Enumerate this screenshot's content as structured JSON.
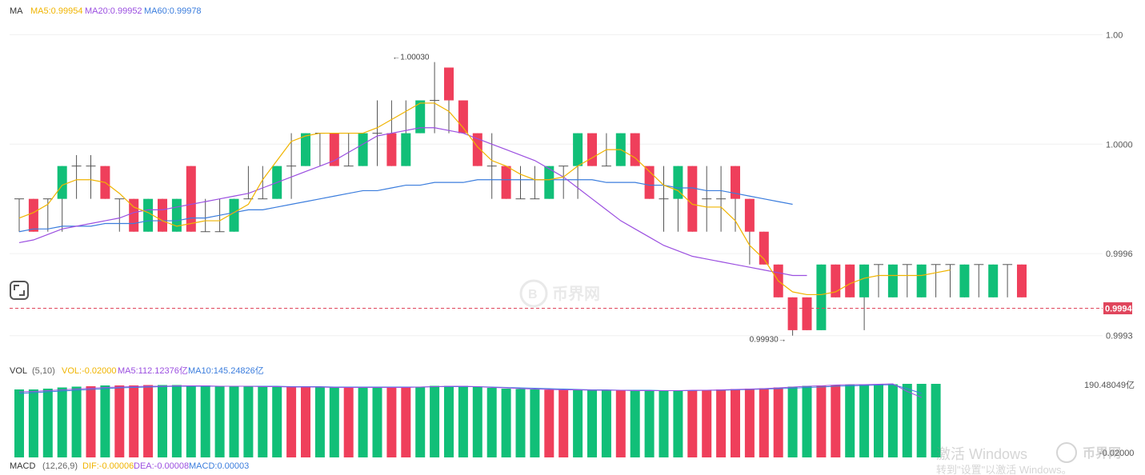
{
  "colors": {
    "up": "#11bf78",
    "down": "#ef3f5b",
    "ma5": "#f0b400",
    "ma20": "#9b4fe0",
    "ma60": "#3b7ddd",
    "grid": "#f0f0f0",
    "axis_text": "#555555",
    "price_line": "#e0455c",
    "label_bg": "#e0455c"
  },
  "main_header": {
    "label": "MA",
    "ma5": "MA5:0.99954",
    "ma20": "MA20:0.99952",
    "ma60": "MA60:0.99978"
  },
  "vol_header": {
    "label": "VOL",
    "params": "(5,10)",
    "vol": "VOL:-0.02000",
    "ma5": "MA5:112.12376亿",
    "ma10": "MA10:145.24826亿"
  },
  "macd_header": {
    "label": "MACD",
    "params": "(12,26,9)",
    "dif": "DIF:-0.00006",
    "dea": "DEA:-0.00008",
    "macd": "MACD:0.00003"
  },
  "watermark": {
    "text": "币界网",
    "activate_line1": "激活 Windows",
    "activate_line2": "转到\"设置\"以激活 Windows。"
  },
  "chart_data": [
    {
      "type": "candlestick",
      "name": "price",
      "y_ticks": [
        "1.00",
        "1.0000",
        "0.9996",
        "0.9993"
      ],
      "y_tick_values": [
        1.0004,
        1.0,
        0.9996,
        0.9993
      ],
      "ylim": [
        0.99927,
        1.00041
      ],
      "last_price_label": "0.9994",
      "last_price": 0.9994,
      "annotations": [
        {
          "text": "←1.00030",
          "index": 27,
          "value": 1.0003
        },
        {
          "text": "0.99930→",
          "index": 54,
          "value": 0.9993
        }
      ],
      "candles": [
        [
          0.9998,
          0.9998,
          0.9998,
          0.99968
        ],
        [
          0.9998,
          0.99968,
          0.9998,
          0.99968
        ],
        [
          0.9998,
          0.9998,
          0.9998,
          0.99968
        ],
        [
          0.9998,
          0.99992,
          0.99992,
          0.99968
        ],
        [
          0.99992,
          0.99992,
          0.99996,
          0.9998
        ],
        [
          0.99992,
          0.99992,
          0.99996,
          0.9998
        ],
        [
          0.99992,
          0.9998,
          0.99992,
          0.9998
        ],
        [
          0.9998,
          0.9998,
          0.9998,
          0.99968
        ],
        [
          0.9998,
          0.99968,
          0.9998,
          0.99968
        ],
        [
          0.99968,
          0.9998,
          0.9998,
          0.99968
        ],
        [
          0.9998,
          0.99968,
          0.9998,
          0.99968
        ],
        [
          0.99968,
          0.9998,
          0.9998,
          0.99968
        ],
        [
          0.99992,
          0.99968,
          0.99992,
          0.99968
        ],
        [
          0.99968,
          0.99968,
          0.9998,
          0.99968
        ],
        [
          0.99968,
          0.99968,
          0.9998,
          0.99968
        ],
        [
          0.99968,
          0.9998,
          0.9998,
          0.99968
        ],
        [
          0.9998,
          0.9998,
          0.99992,
          0.9998
        ],
        [
          0.9998,
          0.9998,
          0.99992,
          0.9998
        ],
        [
          0.9998,
          0.99992,
          0.99992,
          0.9998
        ],
        [
          0.99992,
          0.99992,
          1.00004,
          0.9998
        ],
        [
          0.99992,
          1.00004,
          1.00004,
          0.99992
        ],
        [
          1.00004,
          1.00004,
          1.00004,
          0.99992
        ],
        [
          1.00004,
          0.99992,
          1.00004,
          0.99992
        ],
        [
          0.99992,
          0.99992,
          1.00004,
          0.99992
        ],
        [
          0.99992,
          1.00004,
          1.00004,
          0.99992
        ],
        [
          1.00004,
          1.00004,
          1.00016,
          0.99992
        ],
        [
          1.00004,
          0.99992,
          1.00016,
          0.99992
        ],
        [
          0.99992,
          1.00004,
          1.00016,
          0.99992
        ],
        [
          1.00004,
          1.00016,
          1.00016,
          1.00004
        ],
        [
          1.00016,
          1.00016,
          1.0003,
          1.00004
        ],
        [
          1.00028,
          1.00016,
          1.00028,
          1.00004
        ],
        [
          1.00016,
          1.00004,
          1.00016,
          1.00004
        ],
        [
          1.00004,
          0.99992,
          1.00004,
          0.99992
        ],
        [
          0.99992,
          0.99992,
          1.00004,
          0.9998
        ],
        [
          0.99992,
          0.9998,
          0.99992,
          0.9998
        ],
        [
          0.9998,
          0.9998,
          0.99992,
          0.9998
        ],
        [
          0.9998,
          0.9998,
          0.99992,
          0.9998
        ],
        [
          0.9998,
          0.99992,
          0.99992,
          0.9998
        ],
        [
          0.99992,
          0.99992,
          0.99992,
          0.9998
        ],
        [
          0.99992,
          1.00004,
          1.00004,
          0.9998
        ],
        [
          1.00004,
          0.99992,
          1.00004,
          0.99992
        ],
        [
          0.99992,
          0.99992,
          1.00004,
          0.99992
        ],
        [
          0.99992,
          1.00004,
          1.00004,
          0.99992
        ],
        [
          1.00004,
          0.99992,
          1.00004,
          0.99992
        ],
        [
          0.99992,
          0.9998,
          0.99992,
          0.9998
        ],
        [
          0.9998,
          0.9998,
          0.99992,
          0.99968
        ],
        [
          0.9998,
          0.99992,
          0.99992,
          0.99968
        ],
        [
          0.99992,
          0.99968,
          0.99992,
          0.99968
        ],
        [
          0.9998,
          0.9998,
          0.99992,
          0.99968
        ],
        [
          0.9998,
          0.9998,
          0.99992,
          0.99968
        ],
        [
          0.99992,
          0.9998,
          0.99992,
          0.99968
        ],
        [
          0.9998,
          0.99968,
          0.9998,
          0.99956
        ],
        [
          0.99968,
          0.99956,
          0.99968,
          0.99956
        ],
        [
          0.99956,
          0.99944,
          0.99956,
          0.99944
        ],
        [
          0.99944,
          0.99932,
          0.99944,
          0.9993
        ],
        [
          0.99944,
          0.99932,
          0.99944,
          0.99932
        ],
        [
          0.99932,
          0.99956,
          0.99956,
          0.99932
        ],
        [
          0.99956,
          0.99944,
          0.99956,
          0.99944
        ],
        [
          0.99956,
          0.99944,
          0.99956,
          0.99944
        ],
        [
          0.99944,
          0.99956,
          0.99956,
          0.99932
        ],
        [
          0.99956,
          0.99956,
          0.99956,
          0.99944
        ],
        [
          0.99944,
          0.99956,
          0.99956,
          0.99944
        ],
        [
          0.99956,
          0.99956,
          0.99956,
          0.99944
        ],
        [
          0.99944,
          0.99956,
          0.99956,
          0.99944
        ],
        [
          0.99956,
          0.99956,
          0.99956,
          0.99944
        ],
        [
          0.99956,
          0.99956,
          0.99956,
          0.99944
        ],
        [
          0.99944,
          0.99956,
          0.99956,
          0.99944
        ],
        [
          0.99956,
          0.99956,
          0.99956,
          0.99944
        ],
        [
          0.99944,
          0.99956,
          0.99956,
          0.99944
        ],
        [
          0.99956,
          0.99956,
          0.99956,
          0.99944
        ],
        [
          0.99956,
          0.99944,
          0.99956,
          0.99944
        ]
      ],
      "ma5": [
        0.99973,
        0.99975,
        0.99978,
        0.99985,
        0.99987,
        0.99987,
        0.99986,
        0.99982,
        0.99977,
        0.99975,
        0.99972,
        0.9997,
        0.99971,
        0.99972,
        0.99972,
        0.99975,
        0.99978,
        0.99987,
        0.99994,
        1.00001,
        1.00003,
        1.00004,
        1.00004,
        1.00004,
        1.00004,
        1.00006,
        1.00009,
        1.00012,
        1.00015,
        1.00015,
        1.00012,
        1.00006,
        0.99999,
        0.99994,
        0.99992,
        0.99989,
        0.99987,
        0.99987,
        0.99988,
        0.99992,
        0.99995,
        0.99998,
        0.99998,
        0.99995,
        0.9999,
        0.99985,
        0.99983,
        0.99978,
        0.99977,
        0.99977,
        0.99972,
        0.99963,
        0.99958,
        0.9995,
        0.99946,
        0.99945,
        0.99945,
        0.99946,
        0.99949,
        0.99951,
        0.99952,
        0.99952,
        0.99952,
        0.99952,
        0.99953,
        0.99954
      ],
      "ma20": [
        0.99964,
        0.99965,
        0.99967,
        0.99969,
        0.9997,
        0.99971,
        0.99972,
        0.99973,
        0.99975,
        0.99976,
        0.99976,
        0.99977,
        0.99978,
        0.99979,
        0.9998,
        0.99981,
        0.99982,
        0.99984,
        0.99986,
        0.99988,
        0.9999,
        0.99992,
        0.99994,
        0.99997,
        1.0,
        1.00003,
        1.00004,
        1.00005,
        1.00006,
        1.00006,
        1.00005,
        1.00004,
        1.00002,
        1.0,
        0.99998,
        0.99996,
        0.99994,
        0.99991,
        0.99988,
        0.99984,
        0.9998,
        0.99976,
        0.99972,
        0.99969,
        0.99966,
        0.99963,
        0.99961,
        0.99959,
        0.99958,
        0.99957,
        0.99956,
        0.99955,
        0.99954,
        0.99953,
        0.99952,
        0.99952
      ],
      "ma60": [
        0.99968,
        0.99969,
        0.99969,
        0.9997,
        0.9997,
        0.9997,
        0.99971,
        0.99971,
        0.99971,
        0.99972,
        0.99972,
        0.99972,
        0.99973,
        0.99973,
        0.99974,
        0.99975,
        0.99976,
        0.99976,
        0.99977,
        0.99978,
        0.99979,
        0.9998,
        0.99981,
        0.99982,
        0.99983,
        0.99983,
        0.99984,
        0.99985,
        0.99985,
        0.99986,
        0.99986,
        0.99986,
        0.99987,
        0.99987,
        0.99987,
        0.99987,
        0.99987,
        0.99987,
        0.99987,
        0.99987,
        0.99987,
        0.99986,
        0.99986,
        0.99986,
        0.99985,
        0.99985,
        0.99984,
        0.99984,
        0.99983,
        0.99983,
        0.99982,
        0.99981,
        0.9998,
        0.99979,
        0.99978
      ]
    },
    {
      "type": "bar",
      "name": "volume",
      "y_tick_label": "190.48049亿",
      "ylim": [
        0,
        200
      ],
      "values": [
        170,
        170,
        172,
        175,
        177,
        178,
        180,
        180,
        180,
        181,
        181,
        181,
        180,
        180,
        179,
        178,
        178,
        178,
        177,
        176,
        176,
        176,
        175,
        175,
        175,
        175,
        175,
        175,
        177,
        179,
        179,
        179,
        176,
        174,
        172,
        171,
        170,
        169,
        169,
        168,
        168,
        168,
        167,
        167,
        167,
        166,
        167,
        168,
        169,
        170,
        171,
        172,
        173,
        175,
        177,
        179,
        180,
        181,
        182,
        183,
        183,
        183,
        184,
        184,
        184
      ],
      "up": [
        true,
        true,
        true,
        true,
        true,
        false,
        true,
        false,
        false,
        false,
        true,
        true,
        true,
        true,
        true,
        true,
        true,
        true,
        true,
        false,
        false,
        true,
        true,
        false,
        true,
        true,
        false,
        false,
        true,
        true,
        true,
        true,
        true,
        true,
        true,
        true,
        true,
        false,
        false,
        true,
        true,
        true,
        false,
        true,
        true,
        true,
        true,
        false,
        false,
        false,
        false,
        false,
        false,
        false,
        true,
        true,
        false,
        false,
        true,
        true,
        true,
        true,
        true,
        true,
        true
      ],
      "ma5_line": [
        164,
        165,
        167,
        169,
        171,
        173,
        175,
        176,
        177,
        178,
        178,
        179,
        179,
        179,
        178,
        178,
        178,
        177,
        177,
        176,
        176,
        176,
        175,
        175,
        175,
        175,
        175,
        175,
        176,
        177,
        178,
        178,
        177,
        175,
        174,
        172,
        171,
        170,
        169,
        169,
        168,
        168,
        168,
        167,
        167,
        167,
        167,
        168,
        168,
        169,
        170,
        171,
        172,
        174,
        176,
        178,
        179,
        181,
        182,
        182,
        183,
        184,
        165,
        150
      ],
      "ma10_line": [
        160,
        162,
        164,
        166,
        168,
        170,
        172,
        174,
        175,
        176,
        177,
        178,
        178,
        178,
        178,
        178,
        178,
        178,
        178,
        177,
        177,
        177,
        176,
        176,
        176,
        176,
        176,
        176,
        176,
        177,
        177,
        177,
        177,
        176,
        175,
        174,
        173,
        172,
        171,
        170,
        169,
        169,
        168,
        168,
        168,
        167,
        167,
        167,
        168,
        168,
        169,
        170,
        171,
        172,
        173,
        175,
        176,
        178,
        179,
        180,
        181,
        182,
        172,
        160
      ]
    },
    {
      "type": "bar",
      "name": "macd",
      "y_tick_label": "-0.02000"
    }
  ]
}
